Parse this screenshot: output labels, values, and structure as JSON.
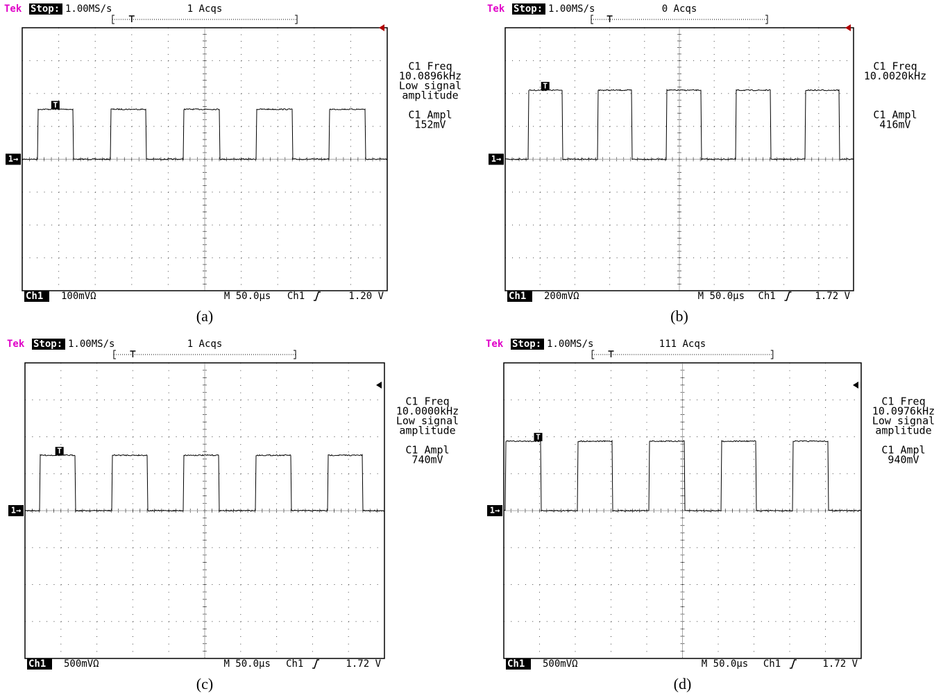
{
  "panels": [
    {
      "header": {
        "brand": "Tek",
        "status": "Stop:",
        "rate": "1.00MS/s",
        "acqs": "1 Acqs"
      },
      "trigger_marker": "T",
      "channel_marker": "1→",
      "measurements": [
        [
          "C1 Freq",
          "10.0896kHz",
          "Low signal",
          "amplitude"
        ],
        [
          "C1 Ampl",
          "152mV"
        ]
      ],
      "footer": {
        "channel": "Ch1",
        "scale": "100mVΩ",
        "timebase": "M 50.0µs",
        "trigger_source": "Ch1",
        "trigger_level": "1.20 V"
      },
      "caption": "(a)"
    },
    {
      "header": {
        "brand": "Tek",
        "status": "Stop:",
        "rate": "1.00MS/s",
        "acqs": "0 Acqs"
      },
      "trigger_marker": "T",
      "channel_marker": "1→",
      "measurements": [
        [
          "C1 Freq",
          "10.0020kHz"
        ],
        [
          "C1 Ampl",
          "416mV"
        ]
      ],
      "footer": {
        "channel": "Ch1",
        "scale": "200mVΩ",
        "timebase": "M 50.0µs",
        "trigger_source": "Ch1",
        "trigger_level": "1.72 V"
      },
      "caption": "(b)"
    },
    {
      "header": {
        "brand": "Tek",
        "status": "Stop:",
        "rate": "1.00MS/s",
        "acqs": "1 Acqs"
      },
      "trigger_marker": "T",
      "channel_marker": "1→",
      "measurements": [
        [
          "C1 Freq",
          "10.0000kHz",
          "Low signal",
          "amplitude"
        ],
        [
          "C1 Ampl",
          "740mV"
        ]
      ],
      "footer": {
        "channel": "Ch1",
        "scale": "500mVΩ",
        "timebase": "M 50.0µs",
        "trigger_source": "Ch1",
        "trigger_level": "1.72 V"
      },
      "caption": "(c)"
    },
    {
      "header": {
        "brand": "Tek",
        "status": "Stop:",
        "rate": "1.00MS/s",
        "acqs": "111 Acqs"
      },
      "trigger_marker": "T",
      "channel_marker": "1→",
      "measurements": [
        [
          "C1 Freq",
          "10.0976kHz",
          "Low signal",
          "amplitude"
        ],
        [
          "C1 Ampl",
          "940mV"
        ]
      ],
      "footer": {
        "channel": "Ch1",
        "scale": "500mVΩ",
        "timebase": "M 50.0µs",
        "trigger_source": "Ch1",
        "trigger_level": "1.72 V"
      },
      "caption": "(d)"
    }
  ]
}
